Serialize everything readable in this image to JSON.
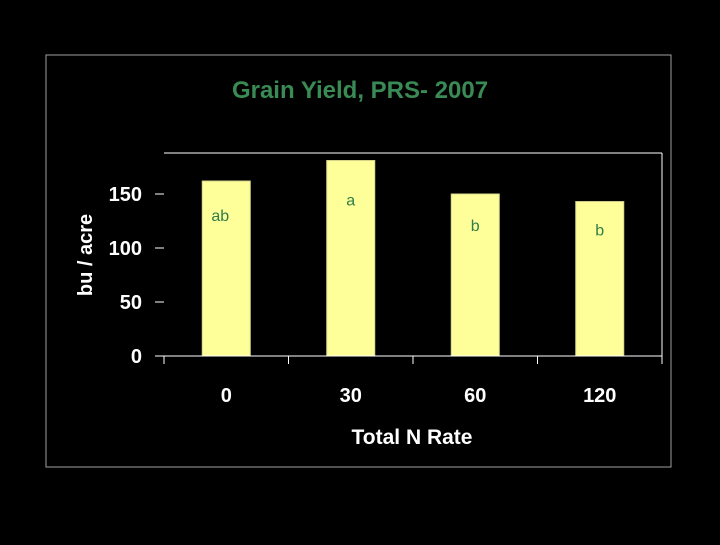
{
  "colors": {
    "background": "#000000",
    "frame": "#a0a0a0",
    "title": "#3a8a55",
    "axis_text": "#ffffff",
    "bar_fill": "#ffff99",
    "bar_stroke": "#d8d890",
    "grid": "#ffffff",
    "letter_text": "#2e7d4a"
  },
  "chart_data": {
    "type": "bar",
    "title": "Grain Yield, PRS- 2007",
    "xlabel": "Total N Rate",
    "ylabel": "bu / acre",
    "categories": [
      "0",
      "30",
      "60",
      "120"
    ],
    "values": [
      162,
      181,
      150,
      143
    ],
    "annotations": [
      "ab",
      "a",
      "b",
      "b"
    ],
    "ylim": [
      0,
      181
    ],
    "yticks": [
      0,
      50,
      100,
      150
    ],
    "grid": false,
    "legend": "none"
  }
}
